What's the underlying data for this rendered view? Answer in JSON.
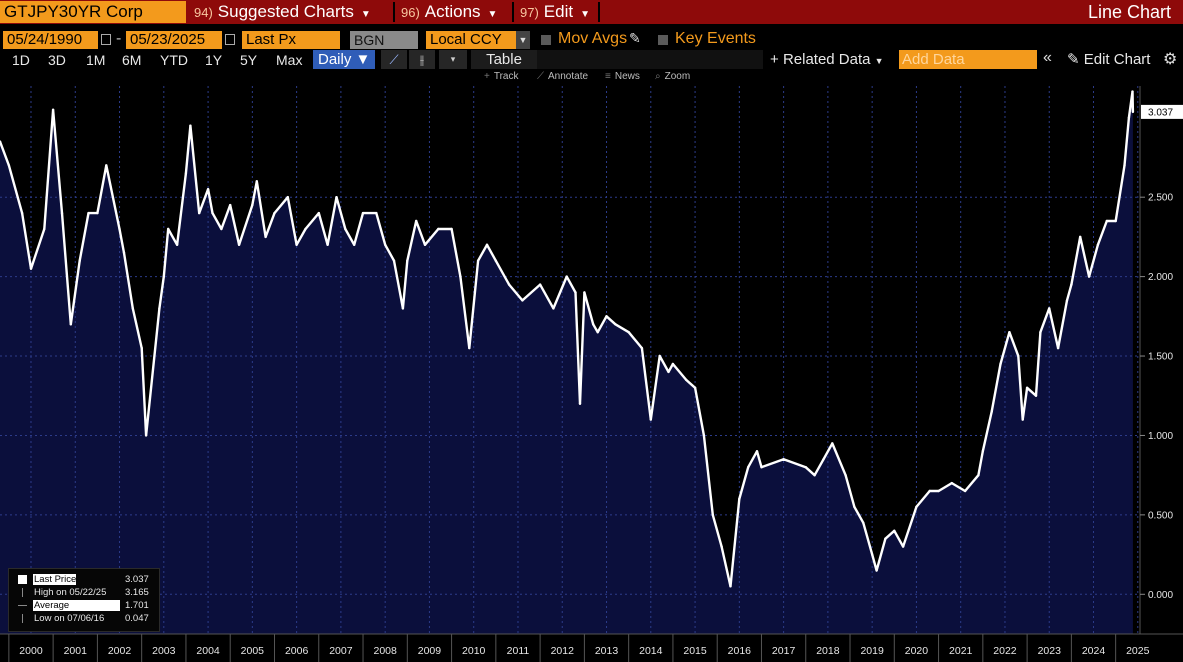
{
  "header": {
    "ticker": "GTJPY30YR Corp",
    "menus": [
      {
        "num": "94)",
        "label": "Suggested Charts"
      },
      {
        "num": "96)",
        "label": "Actions"
      },
      {
        "num": "97)",
        "label": "Edit"
      }
    ],
    "chart_kind": "Line Chart"
  },
  "controls": {
    "start_date": "05/24/1990",
    "end_date": "05/23/2025",
    "field": "Last Px",
    "source": "BGN",
    "currency": "Local CCY",
    "mov_avgs": "Mov Avgs",
    "key_events": "Key Events",
    "ranges": [
      "1D",
      "3D",
      "1M",
      "6M",
      "YTD",
      "1Y",
      "5Y",
      "Max"
    ],
    "frequency": "Daily",
    "table": "Table",
    "related_data": "Related Data",
    "add_data_placeholder": "Add Data",
    "edit_chart": "Edit Chart"
  },
  "tools": {
    "track": "Track",
    "annotate": "Annotate",
    "news": "News",
    "zoom": "Zoom"
  },
  "colors": {
    "accent": "#f39a1c",
    "topbar": "#8e0a0a",
    "area_fill": "#0b0f3c",
    "line": "#ffffff"
  },
  "legend": {
    "rows": [
      {
        "label": "Last Price",
        "value": "3.037"
      },
      {
        "label": "High on 05/22/25",
        "value": "3.165"
      },
      {
        "label": "Average",
        "value": "1.701"
      },
      {
        "label": "Low on 07/06/16",
        "value": "0.047"
      }
    ]
  },
  "chart_data": {
    "type": "area",
    "series": [
      {
        "name": "Last Price",
        "x": [
          1999.8,
          2000.0,
          2000.3,
          2000.5,
          2000.8,
          2001.0,
          2001.2,
          2001.4,
          2001.6,
          2001.8,
          2002.0,
          2002.2,
          2002.5,
          2002.6,
          2002.8,
          2003.0,
          2003.1,
          2003.4,
          2003.5,
          2003.6,
          2003.8,
          2004.0,
          2004.1,
          2004.3,
          2004.5,
          2004.6,
          2004.8,
          2005.0,
          2005.2,
          2005.5,
          2005.6,
          2005.8,
          2006.0,
          2006.3,
          2006.5,
          2006.7,
          2007.0,
          2007.2,
          2007.4,
          2007.6,
          2007.8,
          2008.0,
          2008.3,
          2008.5,
          2008.7,
          2008.9,
          2009.0,
          2009.2,
          2009.4,
          2009.7,
          2010.0,
          2010.2,
          2010.4,
          2010.6,
          2010.8,
          2011.0,
          2011.3,
          2011.6,
          2012.0,
          2012.3,
          2012.6,
          2012.8,
          2012.9,
          2013.0,
          2013.2,
          2013.3,
          2013.5,
          2013.7,
          2014.0,
          2014.3,
          2014.5,
          2014.7,
          2014.9,
          2015.0,
          2015.3,
          2015.5,
          2015.7,
          2015.9,
          2016.1,
          2016.3,
          2016.5,
          2016.7,
          2016.9,
          2017.0,
          2017.5,
          2018.0,
          2018.2,
          2018.4,
          2018.6,
          2018.9,
          2019.1,
          2019.3,
          2019.5,
          2019.6,
          2019.8,
          2020.0,
          2020.2,
          2020.5,
          2020.8,
          2021.0,
          2021.3,
          2021.6,
          2021.9,
          2022.0,
          2022.2,
          2022.4,
          2022.6,
          2022.8,
          2022.9,
          2023.0,
          2023.2,
          2023.3,
          2023.5,
          2023.7,
          2023.9,
          2024.0,
          2024.2,
          2024.4,
          2024.6,
          2024.8,
          2025.0,
          2025.2,
          2025.3,
          2025.38,
          2025.39
        ],
        "values": [
          2.85,
          2.7,
          2.4,
          2.05,
          2.3,
          3.05,
          2.4,
          1.7,
          2.1,
          2.4,
          2.4,
          2.7,
          2.3,
          2.15,
          1.8,
          1.55,
          1.0,
          1.8,
          2.0,
          2.3,
          2.2,
          2.65,
          2.95,
          2.4,
          2.55,
          2.4,
          2.3,
          2.45,
          2.2,
          2.45,
          2.6,
          2.25,
          2.4,
          2.5,
          2.2,
          2.3,
          2.4,
          2.2,
          2.5,
          2.3,
          2.2,
          2.4,
          2.4,
          2.2,
          2.1,
          1.8,
          2.1,
          2.35,
          2.2,
          2.3,
          2.3,
          2.0,
          1.55,
          2.1,
          2.2,
          2.1,
          1.95,
          1.85,
          1.95,
          1.8,
          2.0,
          1.9,
          1.2,
          1.9,
          1.7,
          1.65,
          1.75,
          1.7,
          1.65,
          1.55,
          1.1,
          1.5,
          1.4,
          1.45,
          1.35,
          1.3,
          1.0,
          0.5,
          0.3,
          0.05,
          0.6,
          0.8,
          0.9,
          0.8,
          0.85,
          0.8,
          0.75,
          0.85,
          0.95,
          0.75,
          0.55,
          0.45,
          0.25,
          0.15,
          0.35,
          0.4,
          0.3,
          0.55,
          0.65,
          0.65,
          0.7,
          0.65,
          0.75,
          0.9,
          1.15,
          1.45,
          1.65,
          1.5,
          1.1,
          1.3,
          1.25,
          1.65,
          1.8,
          1.55,
          1.85,
          1.95,
          2.25,
          2.0,
          2.2,
          2.35,
          2.35,
          2.7,
          3.0,
          3.165,
          3.037
        ]
      }
    ],
    "x_ticks": [
      "2000",
      "2001",
      "2002",
      "2003",
      "2004",
      "2005",
      "2006",
      "2007",
      "2008",
      "2009",
      "2010",
      "2011",
      "2012",
      "2013",
      "2014",
      "2015",
      "2016",
      "2017",
      "2018",
      "2019",
      "2020",
      "2021",
      "2022",
      "2023",
      "2024",
      "2025"
    ],
    "y_ticks": [
      "0.000",
      "0.500",
      "1.000",
      "1.500",
      "2.000",
      "2.500",
      "3.037"
    ],
    "ylim": [
      -0.25,
      3.2
    ],
    "last_value_label": "3.037",
    "grid": true,
    "legend_position": "bottom-left"
  }
}
